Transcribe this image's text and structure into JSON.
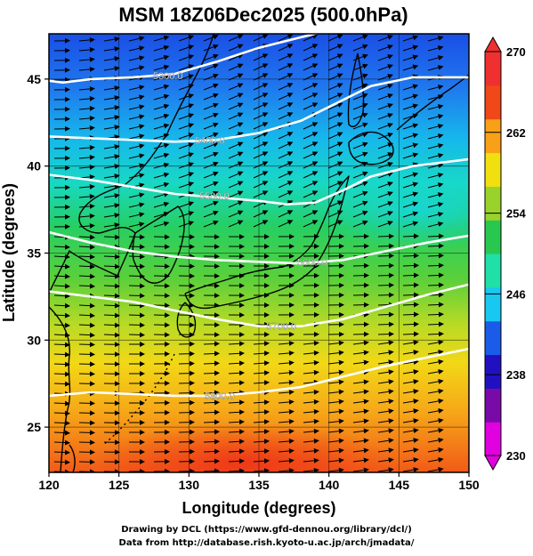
{
  "title": "MSM 18Z06Dec2025 (500.0hPa)",
  "x_axis": {
    "label": "Longitude (degrees)",
    "range": [
      120,
      150
    ],
    "ticks": [
      "120",
      "125",
      "130",
      "135",
      "140",
      "145",
      "150"
    ]
  },
  "y_axis": {
    "label": "Latitude  (degrees)",
    "range": [
      22.4,
      47.6
    ],
    "ticks": [
      "25",
      "30",
      "35",
      "40",
      "45"
    ]
  },
  "colorbar": {
    "range": [
      230,
      270
    ],
    "ticks": [
      "230",
      "238",
      "246",
      "254",
      "262",
      "270"
    ],
    "colors": [
      "#e000e0",
      "#7a0aa8",
      "#2010c0",
      "#1a5ce8",
      "#18c8f0",
      "#20e0a8",
      "#28c850",
      "#9ad22c",
      "#f0e010",
      "#f8a018",
      "#f04818",
      "#f03030"
    ]
  },
  "contours": {
    "levels": [
      {
        "label": "5300.0",
        "label_lon": 128.5,
        "label_lat": 45.2,
        "path": [
          [
            120,
            44.9
          ],
          [
            121,
            44.8
          ],
          [
            123,
            45.0
          ],
          [
            126,
            45.1
          ],
          [
            129,
            45.3
          ],
          [
            132,
            46.0
          ],
          [
            135,
            46.8
          ],
          [
            138,
            47.4
          ],
          [
            140,
            47.8
          ]
        ]
      },
      {
        "label": "5400.0",
        "label_lon": 131.5,
        "label_lat": 41.5,
        "path": [
          [
            120,
            41.7
          ],
          [
            123,
            41.6
          ],
          [
            126,
            41.5
          ],
          [
            129,
            41.4
          ],
          [
            132,
            41.5
          ],
          [
            135,
            41.9
          ],
          [
            138,
            42.6
          ],
          [
            140,
            43.4
          ],
          [
            143,
            44.6
          ],
          [
            146,
            45.1
          ],
          [
            150,
            45.1
          ]
        ]
      },
      {
        "label": "5500.0",
        "label_lon": 131.8,
        "label_lat": 38.3,
        "path": [
          [
            120,
            39.5
          ],
          [
            123,
            39.2
          ],
          [
            126,
            38.8
          ],
          [
            129,
            38.4
          ],
          [
            132,
            38.2
          ],
          [
            135,
            38.0
          ],
          [
            137,
            37.8
          ],
          [
            139,
            37.9
          ],
          [
            141,
            38.6
          ],
          [
            143,
            39.4
          ],
          [
            146,
            40.0
          ],
          [
            150,
            40.4
          ]
        ]
      },
      {
        "label": "5600.0",
        "label_lon": 138.8,
        "label_lat": 34.5,
        "path": [
          [
            120,
            36.2
          ],
          [
            123,
            35.6
          ],
          [
            126,
            35.1
          ],
          [
            129,
            34.8
          ],
          [
            132,
            34.6
          ],
          [
            135,
            34.5
          ],
          [
            138,
            34.4
          ],
          [
            141,
            34.6
          ],
          [
            144,
            35.1
          ],
          [
            147,
            35.6
          ],
          [
            150,
            36.0
          ]
        ]
      },
      {
        "label": "5700.0",
        "label_lon": 136.6,
        "label_lat": 30.8,
        "path": [
          [
            120,
            32.8
          ],
          [
            123,
            32.5
          ],
          [
            126,
            32.2
          ],
          [
            129,
            31.7
          ],
          [
            132,
            31.2
          ],
          [
            135,
            30.8
          ],
          [
            138,
            30.8
          ],
          [
            141,
            31.2
          ],
          [
            144,
            31.9
          ],
          [
            147,
            32.6
          ],
          [
            150,
            33.2
          ]
        ]
      },
      {
        "label": "5800.0",
        "label_lon": 132.2,
        "label_lat": 26.8,
        "path": [
          [
            120,
            26.8
          ],
          [
            123,
            27.0
          ],
          [
            126,
            26.9
          ],
          [
            129,
            26.8
          ],
          [
            132,
            26.8
          ],
          [
            135,
            27.0
          ],
          [
            138,
            27.3
          ],
          [
            141,
            27.9
          ],
          [
            144,
            28.5
          ],
          [
            147,
            29.0
          ],
          [
            150,
            29.5
          ]
        ]
      }
    ]
  },
  "credits": {
    "line1": "Drawing by DCL (https://www.gfd-dennou.org/library/dcl/)",
    "line2": "Data from http://database.rish.kyoto-u.ac.jp/arch/jmadata/"
  }
}
